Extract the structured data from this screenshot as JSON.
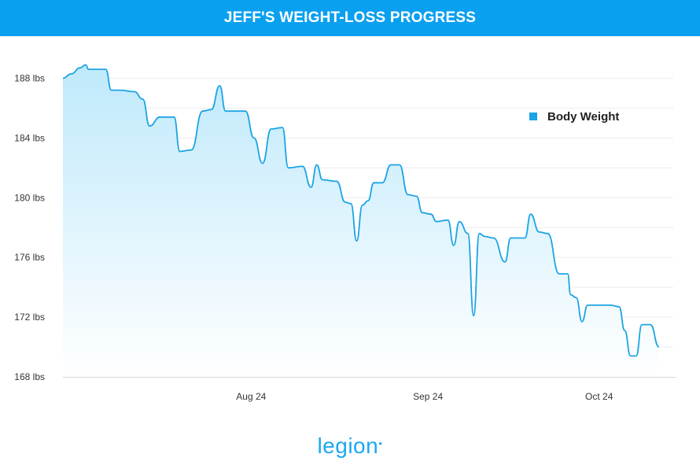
{
  "header": {
    "title": "JEFF'S WEIGHT-LOSS PROGRESS"
  },
  "brand": {
    "text": "legion"
  },
  "colors": {
    "accent": "#0aa0f0",
    "line": "#1ca4e4",
    "fill_top": "#bfe9fb",
    "grid": "#ececec"
  },
  "chart_data": {
    "type": "area",
    "legend": {
      "label": "Body Weight",
      "position": "top-right"
    },
    "x_ticks": [
      "Aug 24",
      "Sep 24",
      "Oct 24"
    ],
    "x_tick_days": [
      33,
      64,
      94
    ],
    "y_ticks": [
      "188 lbs",
      "184 lbs",
      "180 lbs",
      "176 lbs",
      "172 lbs",
      "168 lbs"
    ],
    "y_tick_values": [
      188,
      184,
      180,
      176,
      172,
      168
    ],
    "ylim": [
      168,
      189.5
    ],
    "x_range_days": [
      0,
      107
    ],
    "grid": true,
    "series": [
      {
        "name": "Body Weight",
        "points": [
          [
            0,
            188
          ],
          [
            1.5,
            188.3
          ],
          [
            3,
            188.7
          ],
          [
            4,
            188.9
          ],
          [
            4.5,
            188.6
          ],
          [
            6.5,
            188.6
          ],
          [
            7.5,
            188.6
          ],
          [
            8.5,
            187.2
          ],
          [
            10,
            187.2
          ],
          [
            12.5,
            187.1
          ],
          [
            14,
            186.6
          ],
          [
            15.2,
            184.8
          ],
          [
            17,
            185.4
          ],
          [
            19.5,
            185.4
          ],
          [
            20.5,
            183.1
          ],
          [
            22.5,
            183.2
          ],
          [
            24.5,
            185.8
          ],
          [
            26,
            185.9
          ],
          [
            27.5,
            187.5
          ],
          [
            28.5,
            185.8
          ],
          [
            32,
            185.8
          ],
          [
            33.5,
            184
          ],
          [
            35,
            182.3
          ],
          [
            36.5,
            184.6
          ],
          [
            38.5,
            184.7
          ],
          [
            39.5,
            182
          ],
          [
            42,
            182.1
          ],
          [
            43.5,
            180.7
          ],
          [
            44.5,
            182.2
          ],
          [
            45.5,
            181.2
          ],
          [
            48,
            181.1
          ],
          [
            49.5,
            179.7
          ],
          [
            50.5,
            179.6
          ],
          [
            51.5,
            177.1
          ],
          [
            52.5,
            179.5
          ],
          [
            53.5,
            179.8
          ],
          [
            54.5,
            181
          ],
          [
            56,
            181
          ],
          [
            57.5,
            182.2
          ],
          [
            59,
            182.2
          ],
          [
            60.5,
            180.2
          ],
          [
            62,
            180.1
          ],
          [
            63,
            179
          ],
          [
            64.5,
            178.9
          ],
          [
            65.5,
            178.4
          ],
          [
            67.5,
            178.5
          ],
          [
            68.5,
            176.8
          ],
          [
            69.5,
            178.4
          ],
          [
            71,
            177.6
          ],
          [
            72,
            172.1
          ],
          [
            73,
            177.6
          ],
          [
            74,
            177.4
          ],
          [
            75.5,
            177.3
          ],
          [
            77.5,
            175.7
          ],
          [
            78.5,
            177.3
          ],
          [
            81,
            177.3
          ],
          [
            82,
            178.9
          ],
          [
            83.5,
            177.7
          ],
          [
            85,
            177.6
          ],
          [
            87,
            174.9
          ],
          [
            88.5,
            174.9
          ],
          [
            89,
            173.5
          ],
          [
            90,
            173.3
          ],
          [
            91,
            171.7
          ],
          [
            92,
            172.8
          ],
          [
            93,
            172.8
          ],
          [
            96,
            172.8
          ],
          [
            97.5,
            172.7
          ],
          [
            98.5,
            171.1
          ],
          [
            99.5,
            169.4
          ],
          [
            100.5,
            169.4
          ],
          [
            101.5,
            171.5
          ],
          [
            103,
            171.5
          ],
          [
            104.5,
            170
          ]
        ]
      }
    ]
  }
}
